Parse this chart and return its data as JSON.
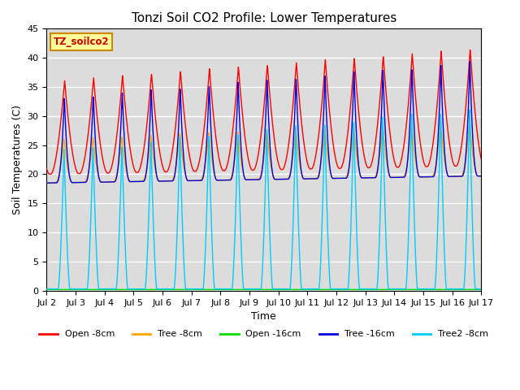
{
  "title": "Tonzi Soil CO2 Profile: Lower Temperatures",
  "ylabel": "Soil Temperatures (C)",
  "xlabel": "Time",
  "ylim": [
    0,
    45
  ],
  "xlim_days": [
    2,
    17
  ],
  "background_color": "#dcdcdc",
  "grid_color": "#ffffff",
  "series": {
    "open_8cm": {
      "label": "Open -8cm",
      "color": "#ff0000"
    },
    "tree_8cm": {
      "label": "Tree -8cm",
      "color": "#ffa500"
    },
    "open_16cm": {
      "label": "Open -16cm",
      "color": "#00dd00"
    },
    "tree_16cm": {
      "label": "Tree -16cm",
      "color": "#0000dd"
    },
    "tree2_8cm": {
      "label": "Tree2 -8cm",
      "color": "#00ccff"
    }
  },
  "xtick_labels": [
    "Jul 2",
    "Jul 3",
    "Jul 4",
    "Jul 5",
    "Jul 6",
    "Jul 7",
    "Jul 8",
    "Jul 9",
    "Jul 10",
    "Jul 11",
    "Jul 12",
    "Jul 13",
    "Jul 14",
    "Jul 15",
    "Jul 16",
    "Jul 17"
  ],
  "xtick_positions": [
    2,
    3,
    4,
    5,
    6,
    7,
    8,
    9,
    10,
    11,
    12,
    13,
    14,
    15,
    16,
    17
  ],
  "watermark_text": "TZ_soilco2",
  "watermark_fgcolor": "#cc0000",
  "watermark_bgcolor": "#ffff99",
  "watermark_edgecolor": "#cc8800"
}
